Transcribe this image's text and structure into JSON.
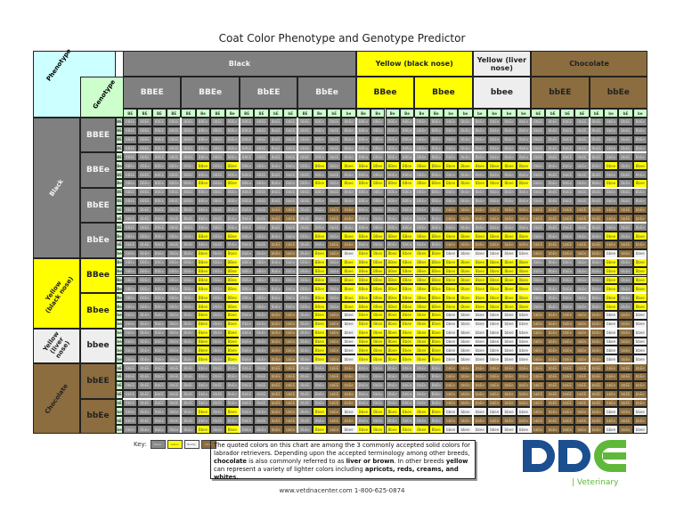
{
  "title": "Coat Color Phenotype and Genotype Predictor",
  "corner": {
    "phenotype_label": "Phenotype",
    "genotype_label": "Genotype"
  },
  "column_phenotypes": [
    {
      "label": "Black",
      "class": "blk",
      "span": 4
    },
    {
      "label": "Yellow (black nose)",
      "class": "yel",
      "span": 2
    },
    {
      "label": "Yellow (liver nose)",
      "class": "liv",
      "span": 1
    },
    {
      "label": "Chocolate",
      "class": "cho",
      "span": 2
    }
  ],
  "genotypes": [
    {
      "label": "BBEE",
      "class": "blk",
      "gametes": [
        "BE",
        "BE",
        "BE",
        "BE"
      ]
    },
    {
      "label": "BBEe",
      "class": "blk",
      "gametes": [
        "BE",
        "Be",
        "BE",
        "Be"
      ]
    },
    {
      "label": "BbEE",
      "class": "blk",
      "gametes": [
        "BE",
        "BE",
        "bE",
        "bE"
      ]
    },
    {
      "label": "BbEe",
      "class": "blk",
      "gametes": [
        "BE",
        "Be",
        "bE",
        "be"
      ]
    },
    {
      "label": "BBee",
      "class": "yel",
      "gametes": [
        "Be",
        "Be",
        "Be",
        "Be"
      ]
    },
    {
      "label": "Bbee",
      "class": "yel",
      "gametes": [
        "Be",
        "Be",
        "be",
        "be"
      ]
    },
    {
      "label": "bbee",
      "class": "liv",
      "gametes": [
        "be",
        "be",
        "be",
        "be"
      ]
    },
    {
      "label": "bbEE",
      "class": "cho",
      "gametes": [
        "bE",
        "bE",
        "bE",
        "bE"
      ]
    },
    {
      "label": "bbEe",
      "class": "cho",
      "gametes": [
        "bE",
        "be",
        "bE",
        "be"
      ]
    }
  ],
  "row_phenotypes": [
    {
      "label": "Black",
      "class": "blk",
      "span": 4
    },
    {
      "label": "Yellow (black nose)",
      "class": "yel",
      "span": 2
    },
    {
      "label": "Yellow (liver nose)",
      "class": "liv",
      "span": 1
    },
    {
      "label": "Chocolate",
      "class": "cho",
      "span": 2
    }
  ],
  "gamete_sequence": [
    "BE",
    "BE",
    "BE",
    "BE",
    "BE",
    "Be",
    "BE",
    "Be",
    "BE",
    "BE",
    "bE",
    "bE",
    "BE",
    "Be",
    "bE",
    "be",
    "Be",
    "Be",
    "Be",
    "Be",
    "Be",
    "Be",
    "be",
    "be",
    "be",
    "be",
    "be",
    "be",
    "bE",
    "bE",
    "bE",
    "bE",
    "bE",
    "be",
    "bE",
    "be"
  ],
  "offspring_by_row_gamete": {
    "BE": "BBEE BBEE BBEE BBEE BBEE BBEe BBEE BBEe BBEE BBEE BbEE BbEE BBEE BBEe BbEE BbEe BBEe BBEe BBEe BBEe BBEe BBEe BbEe BbEe BbEe BbEe BbEe BbEe BbEE BbEE BbEE BbEE BbEE BbEe BbEE BbEe",
    "Be": "BBEe BBEe BBEe BBEe BBEe BBee BBEe BBee BBEe BBEe BbEe BbEe BBEe BBee BbEe Bbee BBee BBee BBee BBee BBee BBee Bbee Bbee Bbee Bbee Bbee Bbee BbEe BbEe BbEe BbEe BbEe Bbee BbEe Bbee",
    "bE": "BbEE BbEE BbEE BbEE BbEE BbEe BbEE BbEe BbEE BbEE bbEE bbEE BbEE BbEe bbEE bbEe BbEe BbEe BbEe BbEe BbEe BbEe bbEe bbEe bbEe bbEe bbEe bbEe bbEE bbEE bbEE bbEE bbEE bbEe bbEE bbEe",
    "be": "BbEe BbEe BbEe BbEe BbEe Bbee BbEe Bbee BbEe BbEe bbEe bbEe BbEe Bbee bbEe bbee Bbee Bbee Bbee Bbee Bbee Bbee bbee bbee bbee bbee bbee bbee bbEe bbEe bbEe bbEe bbEe bbee bbEe bbee"
  },
  "colors": {
    "black": "#808080",
    "yellow": "#ffff00",
    "liver_yellow": "#eeeeee",
    "chocolate": "#8c6d3f",
    "gamete": "#ccffcc",
    "phenotype_corner": "#ccffff",
    "genotype_corner": "#ccffcc"
  },
  "key": {
    "label": "Key:",
    "swatches": [
      {
        "label": "Black",
        "class": "c-blk"
      },
      {
        "label": "Yellow",
        "class": "c-yel"
      },
      {
        "label": "Buddy",
        "class": "c-liv"
      },
      {
        "label": "Choc",
        "class": "c-cho"
      }
    ]
  },
  "note": {
    "part1": "The quoted colors on this chart are among the 3 commonly accepted solid colors for labrador retrievers. Depending upon the accepted terminology among other breeds, ",
    "b1": "chocolate",
    "part2": " is also commonly referred to as ",
    "b2": "liver or brown",
    "part3": ".  In other breeds ",
    "b3": "yellow",
    "part4": " can represent a variety of lighter colors including ",
    "b4": "apricots, reds, creams, and whites."
  },
  "footer": "www.vetdnacenter.com  1-800-625-0874",
  "logo": {
    "text": "DDC",
    "sub": "| Veterinary",
    "blue": "#1b4f8f",
    "green": "#5fb83a"
  },
  "chart_data": {
    "type": "table",
    "title": "Coat Color Phenotype and Genotype Predictor",
    "rows": [
      "BBEE",
      "BBEe",
      "BbEE",
      "BbEe",
      "BBee",
      "Bbee",
      "bbee",
      "bbEE",
      "bbEe"
    ],
    "columns": [
      "BBEE",
      "BBEe",
      "BbEE",
      "BbEe",
      "BBee",
      "Bbee",
      "bbee",
      "bbEE",
      "bbEe"
    ],
    "phenotype_groups": {
      "Black": [
        "BBEE",
        "BBEe",
        "BbEE",
        "BbEe"
      ],
      "Yellow (black nose)": [
        "BBee",
        "Bbee"
      ],
      "Yellow (liver nose)": [
        "bbee"
      ],
      "Chocolate": [
        "bbEE",
        "bbEe"
      ]
    },
    "cell_structure": "4x4 Punnett square of parental gametes per genotype pair"
  }
}
